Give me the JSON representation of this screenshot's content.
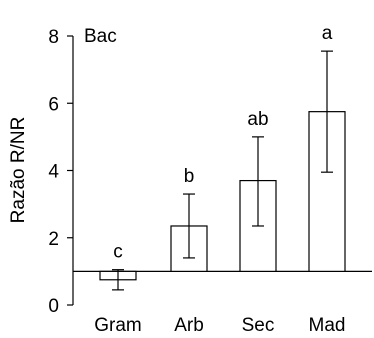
{
  "chart_data": {
    "type": "bar",
    "panel_label": "Bac",
    "ylabel": "Razão R/NR",
    "xlabel": "",
    "categories": [
      "Gram",
      "Arb",
      "Sec",
      "Mad"
    ],
    "values": [
      0.75,
      2.35,
      3.7,
      5.75
    ],
    "error_low": [
      0.45,
      1.4,
      2.35,
      3.95
    ],
    "error_high": [
      1.05,
      3.3,
      5.0,
      7.55
    ],
    "group_letters": [
      "c",
      "b",
      "ab",
      "a"
    ],
    "reference_line": 1,
    "ylim": [
      0,
      8
    ],
    "yticks": [
      0,
      2,
      4,
      6,
      8
    ],
    "grid": false,
    "legend": "none",
    "colors": {
      "bar_fill": "#ffffff",
      "stroke": "#000000"
    }
  }
}
